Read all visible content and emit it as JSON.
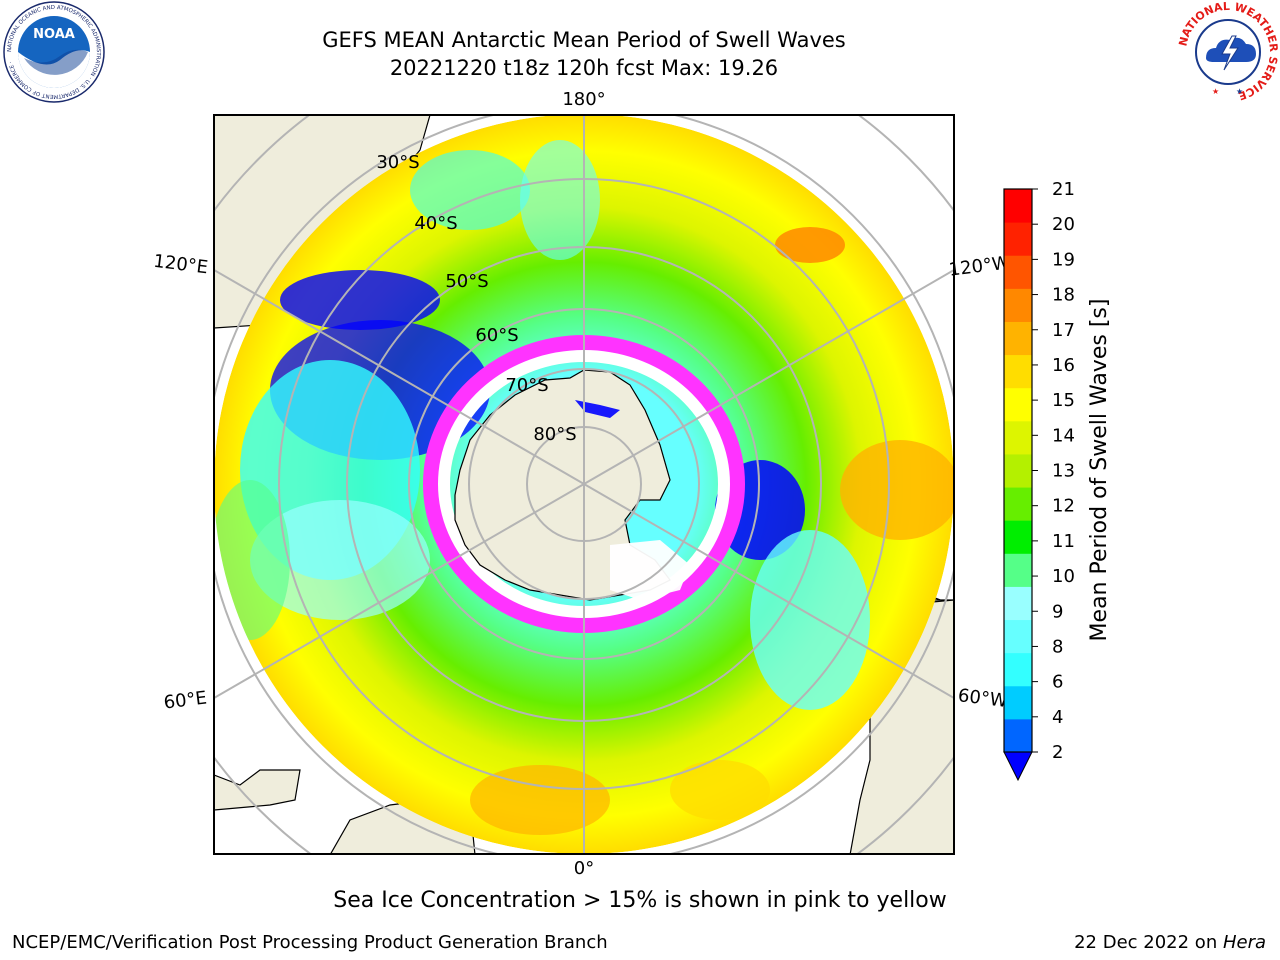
{
  "header": {
    "title_line1": "GEFS MEAN Antarctic Mean Period of Swell Waves",
    "title_line2": "20221220 t18z 120h fcst   Max: 19.26"
  },
  "logos": {
    "left": {
      "name": "noaa-logo",
      "text": "NOAA",
      "ring_text": "NATIONAL OCEANIC AND ATMOSPHERIC ADMINISTRATION · U.S. DEPARTMENT OF COMMERCE ·"
    },
    "right": {
      "name": "national-weather-service-logo",
      "ring_text": "NATIONAL WEATHER SERVICE"
    }
  },
  "map": {
    "projection": "south-polar-stereographic",
    "longitude_labels": [
      "180°",
      "120°E",
      "120°W",
      "60°E",
      "60°W",
      "0°"
    ],
    "latitude_labels": [
      "30°S",
      "40°S",
      "50°S",
      "60°S",
      "70°S",
      "80°S"
    ],
    "colors": {
      "land": "#efeddc",
      "grid": "#b4b4b4",
      "sea_ice_edge": "#ff33ff",
      "sea_ice_interior": "#ffffff"
    }
  },
  "colorbar": {
    "label": "Mean Period of Swell Waves [s]",
    "ticks": [
      "2",
      "4",
      "6",
      "8",
      "9",
      "10",
      "11",
      "12",
      "13",
      "14",
      "15",
      "16",
      "17",
      "18",
      "19",
      "20",
      "21"
    ],
    "colors": [
      "#0066ff",
      "#00ccff",
      "#33ffff",
      "#66ffff",
      "#99ffff",
      "#55ff88",
      "#00ee00",
      "#66ee00",
      "#b4f000",
      "#ddf500",
      "#ffff00",
      "#ffdd00",
      "#ffb300",
      "#ff8800",
      "#ff5500",
      "#ff2200",
      "#ff0000"
    ],
    "extend": "min",
    "extend_color": "#0000ff"
  },
  "caption": "Sea Ice Concentration > 15% is shown in pink to yellow",
  "footer": {
    "left": "NCEP/EMC/Verification Post Processing Product Generation Branch",
    "date": "22 Dec 2022 on ",
    "host": "Hera"
  }
}
